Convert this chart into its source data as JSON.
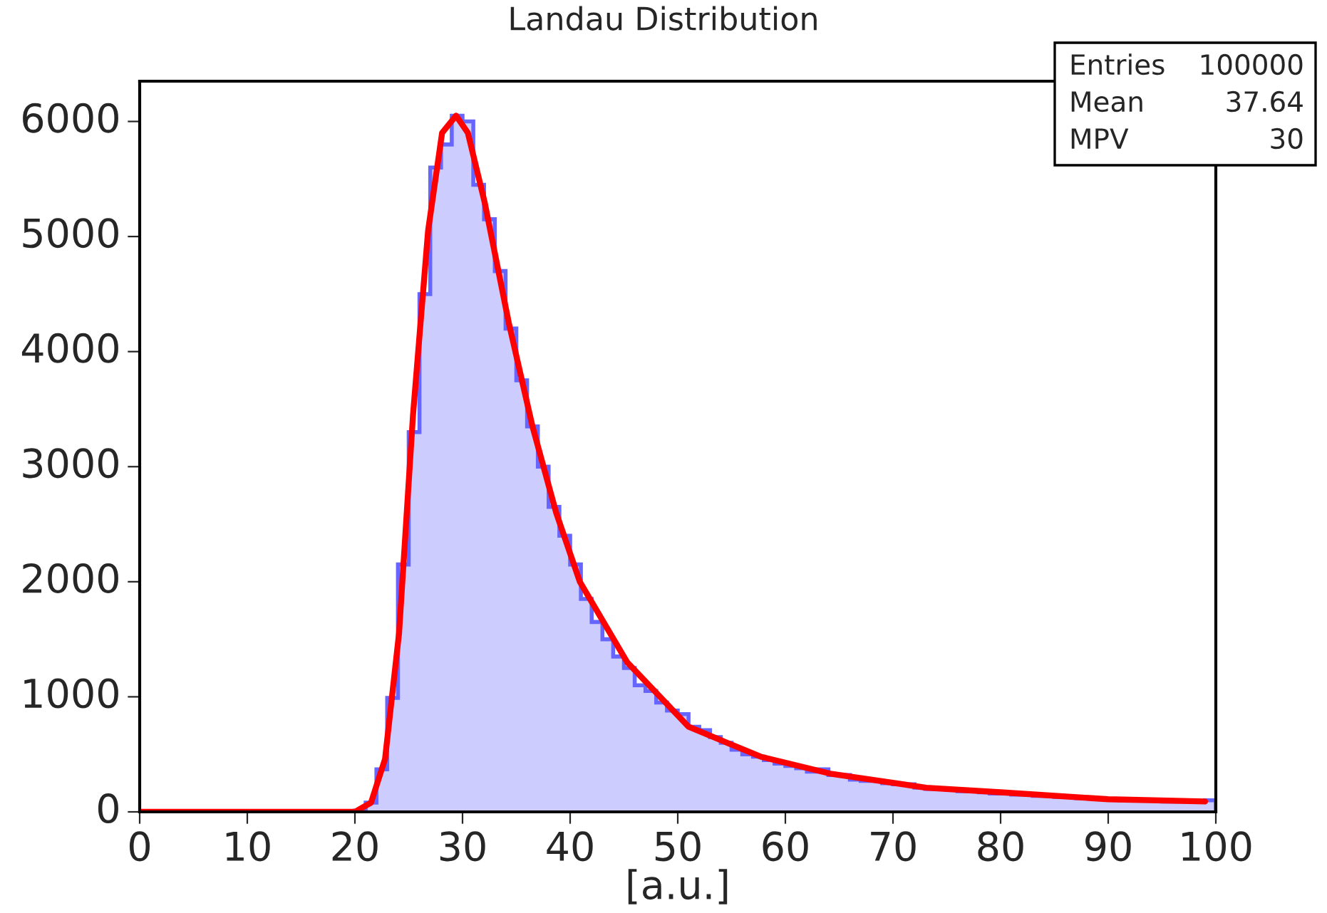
{
  "chart_data": {
    "type": "histogram",
    "title": "Landau Distribution",
    "xlabel": "[a.u.]",
    "bins": [
      0,
      1,
      2,
      3,
      4,
      5,
      6,
      7,
      8,
      9,
      10,
      11,
      12,
      13,
      14,
      15,
      16,
      17,
      18,
      19,
      20,
      21,
      22,
      23,
      24,
      25,
      26,
      27,
      28,
      29,
      30,
      31,
      32,
      33,
      34,
      35,
      36,
      37,
      38,
      39,
      40,
      41,
      42,
      43,
      44,
      45,
      46,
      47,
      48,
      49,
      50,
      51,
      52,
      53,
      54,
      55,
      56,
      57,
      58,
      59,
      60,
      61,
      62,
      63,
      64,
      65,
      66,
      67,
      68,
      69,
      70,
      71,
      72,
      73,
      74,
      75,
      76,
      77,
      78,
      79,
      80,
      81,
      82,
      83,
      84,
      85,
      86,
      87,
      88,
      89,
      90,
      91,
      92,
      93,
      94,
      95,
      96,
      97,
      98,
      99,
      100
    ],
    "values": [
      0,
      0,
      0,
      0,
      0,
      0,
      0,
      0,
      0,
      0,
      0,
      0,
      0,
      0,
      0,
      0,
      0,
      0,
      0,
      0,
      10,
      80,
      370,
      990,
      2150,
      3300,
      4500,
      5600,
      5800,
      6050,
      6000,
      5450,
      5150,
      4700,
      4200,
      3750,
      3350,
      3000,
      2650,
      2400,
      2150,
      1850,
      1650,
      1500,
      1350,
      1250,
      1100,
      1050,
      950,
      880,
      850,
      740,
      710,
      650,
      600,
      540,
      500,
      480,
      450,
      420,
      400,
      380,
      350,
      370,
      320,
      320,
      280,
      270,
      270,
      250,
      240,
      240,
      210,
      200,
      200,
      190,
      180,
      180,
      170,
      160,
      160,
      150,
      150,
      140,
      140,
      130,
      130,
      120,
      120,
      110,
      110,
      100,
      100,
      100,
      100,
      90,
      90,
      90,
      90,
      100
    ],
    "color": "#ccccff",
    "series": [
      {
        "type": "line",
        "color": "#ff0000",
        "x": [
          0,
          10,
          20,
          21.5,
          22.8,
          24.1,
          25.4,
          26.8,
          28.1,
          29.4,
          30.5,
          32.05,
          34.3,
          36.5,
          38.7,
          40.9,
          45.3,
          51,
          57.7,
          64.3,
          73.1,
          80,
          90,
          99
        ],
        "values": [
          0,
          0,
          0,
          80,
          460,
          1550,
          3450,
          5050,
          5900,
          6050,
          5900,
          5300,
          4250,
          3350,
          2600,
          2000,
          1300,
          740,
          480,
          330,
          210,
          170,
          110,
          90
        ]
      }
    ],
    "xlim": [
      0,
      100
    ],
    "ylim": [
      0,
      6350
    ],
    "xticks": [
      0,
      10,
      20,
      30,
      40,
      50,
      60,
      70,
      80,
      90,
      100
    ],
    "yticks": [
      0,
      1000,
      2000,
      3000,
      4000,
      5000,
      6000
    ],
    "grid": false,
    "annotations": [
      "Entries",
      "100000",
      "Mean",
      "37.64",
      "MPV",
      "30"
    ]
  }
}
